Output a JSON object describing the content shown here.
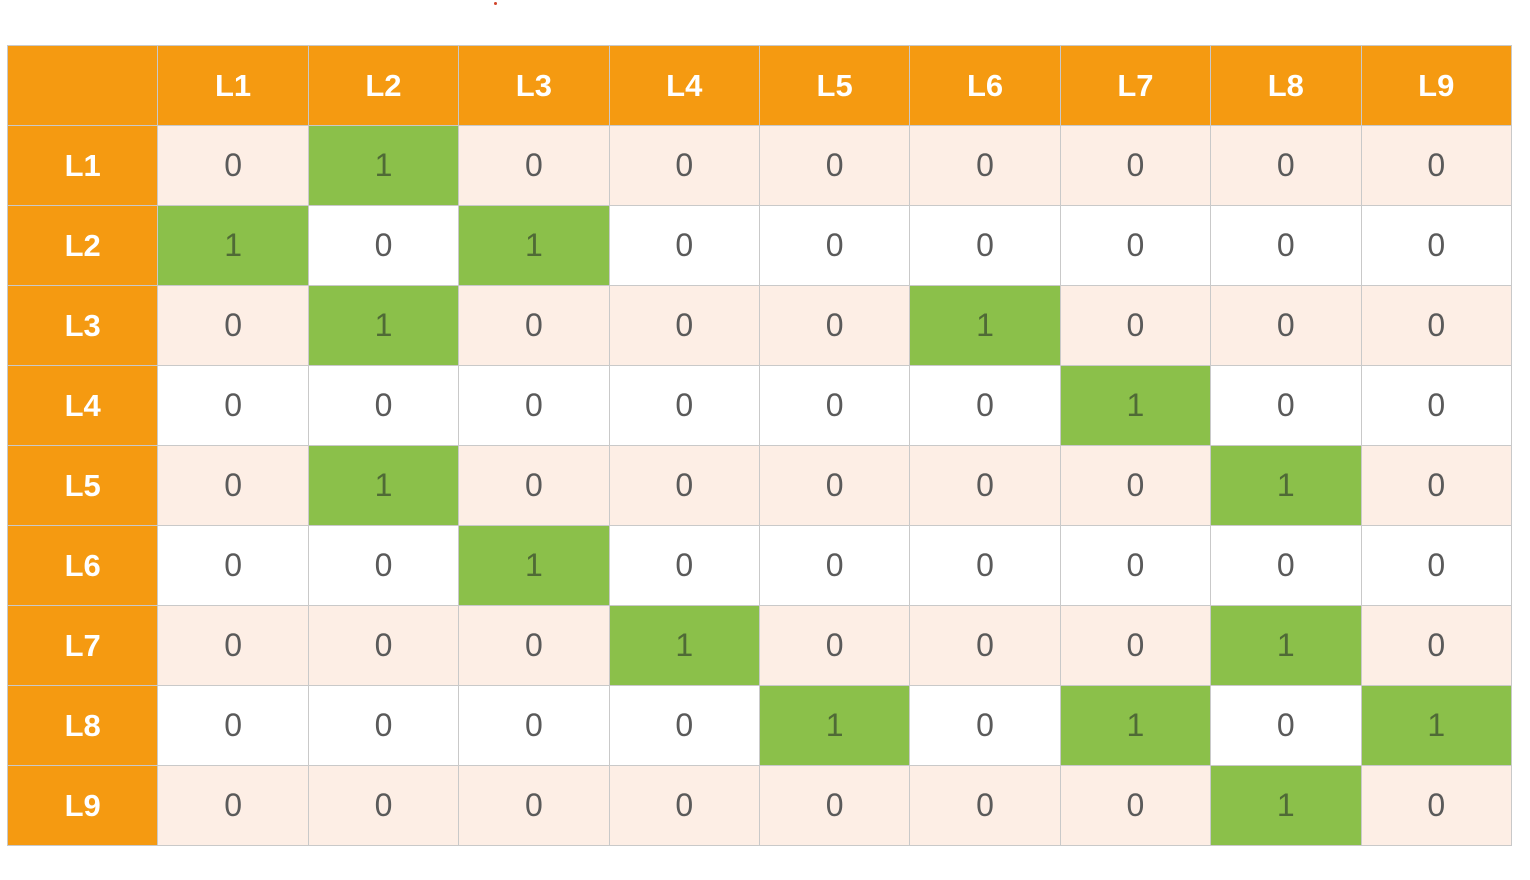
{
  "col_headers": [
    "L1",
    "L2",
    "L3",
    "L4",
    "L5",
    "L6",
    "L7",
    "L8",
    "L9"
  ],
  "row_headers": [
    "L1",
    "L2",
    "L3",
    "L4",
    "L5",
    "L6",
    "L7",
    "L8",
    "L9"
  ],
  "matrix": [
    [
      0,
      1,
      0,
      0,
      0,
      0,
      0,
      0,
      0
    ],
    [
      1,
      0,
      1,
      0,
      0,
      0,
      0,
      0,
      0
    ],
    [
      0,
      1,
      0,
      0,
      0,
      1,
      0,
      0,
      0
    ],
    [
      0,
      0,
      0,
      0,
      0,
      0,
      1,
      0,
      0
    ],
    [
      0,
      1,
      0,
      0,
      0,
      0,
      0,
      1,
      0
    ],
    [
      0,
      0,
      1,
      0,
      0,
      0,
      0,
      0,
      0
    ],
    [
      0,
      0,
      0,
      1,
      0,
      0,
      0,
      1,
      0
    ],
    [
      0,
      0,
      0,
      0,
      1,
      0,
      1,
      0,
      1
    ],
    [
      0,
      0,
      0,
      0,
      0,
      0,
      0,
      1,
      0
    ]
  ],
  "colors": {
    "header": "#f59a11",
    "highlight": "#8bc04a",
    "row_tint": "#fdeee5"
  }
}
